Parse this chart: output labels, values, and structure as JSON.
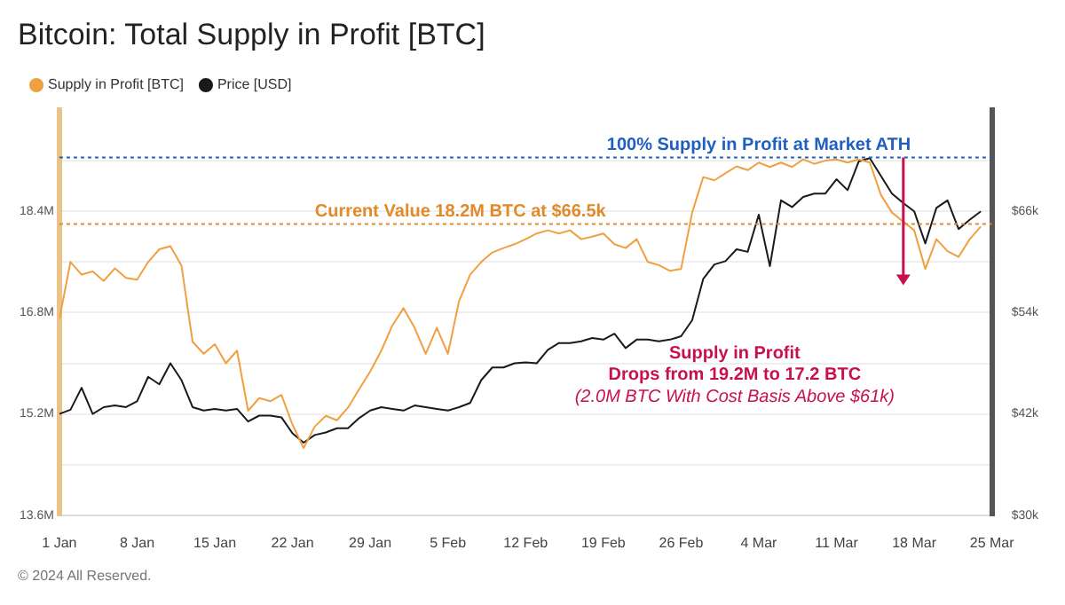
{
  "chart_data": {
    "type": "line",
    "title": "Bitcoin: Total Supply in Profit [BTC]",
    "x": [
      "2024-01-01",
      "2024-01-02",
      "2024-01-03",
      "2024-01-04",
      "2024-01-05",
      "2024-01-06",
      "2024-01-07",
      "2024-01-08",
      "2024-01-09",
      "2024-01-10",
      "2024-01-11",
      "2024-01-12",
      "2024-01-13",
      "2024-01-14",
      "2024-01-15",
      "2024-01-16",
      "2024-01-17",
      "2024-01-18",
      "2024-01-19",
      "2024-01-20",
      "2024-01-21",
      "2024-01-22",
      "2024-01-23",
      "2024-01-24",
      "2024-01-25",
      "2024-01-26",
      "2024-01-27",
      "2024-01-28",
      "2024-01-29",
      "2024-01-30",
      "2024-01-31",
      "2024-02-01",
      "2024-02-02",
      "2024-02-03",
      "2024-02-04",
      "2024-02-05",
      "2024-02-06",
      "2024-02-07",
      "2024-02-08",
      "2024-02-09",
      "2024-02-10",
      "2024-02-11",
      "2024-02-12",
      "2024-02-13",
      "2024-02-14",
      "2024-02-15",
      "2024-02-16",
      "2024-02-17",
      "2024-02-18",
      "2024-02-19",
      "2024-02-20",
      "2024-02-21",
      "2024-02-22",
      "2024-02-23",
      "2024-02-24",
      "2024-02-25",
      "2024-02-26",
      "2024-02-27",
      "2024-02-28",
      "2024-02-29",
      "2024-03-01",
      "2024-03-02",
      "2024-03-03",
      "2024-03-04",
      "2024-03-05",
      "2024-03-06",
      "2024-03-07",
      "2024-03-08",
      "2024-03-09",
      "2024-03-10",
      "2024-03-11",
      "2024-03-12",
      "2024-03-13",
      "2024-03-14",
      "2024-03-15",
      "2024-03-16",
      "2024-03-17",
      "2024-03-18",
      "2024-03-19",
      "2024-03-20",
      "2024-03-21",
      "2024-03-22",
      "2024-03-23",
      "2024-03-24"
    ],
    "series": [
      {
        "name": "Supply in Profit [BTC]",
        "color": "#f0a040",
        "values": [
          16.7,
          17.6,
          17.4,
          17.45,
          17.3,
          17.5,
          17.35,
          17.32,
          17.6,
          17.8,
          17.85,
          17.54,
          16.34,
          16.15,
          16.3,
          16.0,
          16.2,
          15.25,
          15.45,
          15.4,
          15.5,
          15.03,
          14.66,
          15.0,
          15.17,
          15.1,
          15.3,
          15.59,
          15.87,
          16.2,
          16.6,
          16.87,
          16.56,
          16.15,
          16.56,
          16.15,
          16.98,
          17.4,
          17.6,
          17.75,
          17.82,
          17.88,
          17.96,
          18.05,
          18.1,
          18.05,
          18.1,
          17.96,
          18.0,
          18.05,
          17.88,
          17.82,
          17.96,
          17.6,
          17.55,
          17.46,
          17.49,
          18.38,
          18.94,
          18.89,
          19.0,
          19.11,
          19.05,
          19.17,
          19.1,
          19.17,
          19.1,
          19.22,
          19.15,
          19.2,
          19.22,
          19.17,
          19.22,
          19.17,
          18.66,
          18.38,
          18.24,
          18.1,
          17.49,
          17.96,
          17.77,
          17.68,
          17.96,
          18.16
        ]
      },
      {
        "name": "Price [USD]",
        "color": "#1a1a1a",
        "axis": "y2",
        "values": [
          42.0,
          42.5,
          45.1,
          42.0,
          42.8,
          43.0,
          42.8,
          43.5,
          46.4,
          45.5,
          48.0,
          46.0,
          42.8,
          42.4,
          42.6,
          42.4,
          42.6,
          41.1,
          41.8,
          41.8,
          41.6,
          39.7,
          38.6,
          39.5,
          39.8,
          40.3,
          40.3,
          41.5,
          42.4,
          42.8,
          42.6,
          42.4,
          43.0,
          42.8,
          42.6,
          42.4,
          42.8,
          43.3,
          46.0,
          47.5,
          47.5,
          48.0,
          48.1,
          48.0,
          49.6,
          50.4,
          50.4,
          50.6,
          51.0,
          50.8,
          51.5,
          49.8,
          50.8,
          50.8,
          50.6,
          50.8,
          51.2,
          53.1,
          58.0,
          59.7,
          60.1,
          61.5,
          61.2,
          65.6,
          59.5,
          67.3,
          66.5,
          67.7,
          68.1,
          68.1,
          69.8,
          68.5,
          71.9,
          72.3,
          70.2,
          68.1,
          67.0,
          66.0,
          62.2,
          66.4,
          67.3,
          63.9,
          65.0,
          66.0
        ]
      }
    ],
    "xlim": [
      "2024-01-01",
      "2024-03-25"
    ],
    "xticks": [
      {
        "value": "2024-01-01",
        "label": "1 Jan"
      },
      {
        "value": "2024-01-08",
        "label": "8 Jan"
      },
      {
        "value": "2024-01-15",
        "label": "15 Jan"
      },
      {
        "value": "2024-01-22",
        "label": "22 Jan"
      },
      {
        "value": "2024-01-29",
        "label": "29 Jan"
      },
      {
        "value": "2024-02-05",
        "label": "5 Feb"
      },
      {
        "value": "2024-02-12",
        "label": "12 Feb"
      },
      {
        "value": "2024-02-19",
        "label": "19 Feb"
      },
      {
        "value": "2024-02-26",
        "label": "26 Feb"
      },
      {
        "value": "2024-03-04",
        "label": "4 Mar"
      },
      {
        "value": "2024-03-11",
        "label": "11 Mar"
      },
      {
        "value": "2024-03-18",
        "label": "18 Mar"
      },
      {
        "value": "2024-03-25",
        "label": "25 Mar"
      }
    ],
    "ylim": [
      13.6,
      20
    ],
    "yticks": [
      {
        "value": 13.6,
        "label": "13.6M"
      },
      {
        "value": 14.4,
        "label": null
      },
      {
        "value": 15.2,
        "label": "15.2M"
      },
      {
        "value": 16.0,
        "label": null
      },
      {
        "value": 16.8,
        "label": "16.8M"
      },
      {
        "value": 17.6,
        "label": null
      },
      {
        "value": 18.4,
        "label": "18.4M"
      },
      {
        "value": 19.2,
        "label": null
      }
    ],
    "y2lim": [
      30,
      78
    ],
    "y2ticks": [
      {
        "value": 30,
        "label": "$30k"
      },
      {
        "value": 36,
        "label": null
      },
      {
        "value": 42,
        "label": "$42k"
      },
      {
        "value": 48,
        "label": null
      },
      {
        "value": 54,
        "label": "$54k"
      },
      {
        "value": 60,
        "label": null
      },
      {
        "value": 66,
        "label": "$66k"
      },
      {
        "value": 72,
        "label": null
      }
    ],
    "grid": "y",
    "legend": "top left",
    "marker": "none",
    "line_style": "solid",
    "ref_lines": [
      {
        "axis": "y",
        "value": 19.25,
        "label": "100% Supply in Profit at Market ATH",
        "color": "#1f5fbf",
        "line_style": "dotted"
      },
      {
        "axis": "y",
        "value": 18.2,
        "label": "Current Value 18.2M BTC at $66.5k",
        "color": "#e08a2a",
        "line_style": "dotted"
      }
    ],
    "annotations": [
      "Supply in Profit",
      "Drops from 19.2M to 17.2 BTC",
      "(2.0M BTC With Cost Basis Above $61k)",
      "© 2024 All Reserved."
    ]
  }
}
